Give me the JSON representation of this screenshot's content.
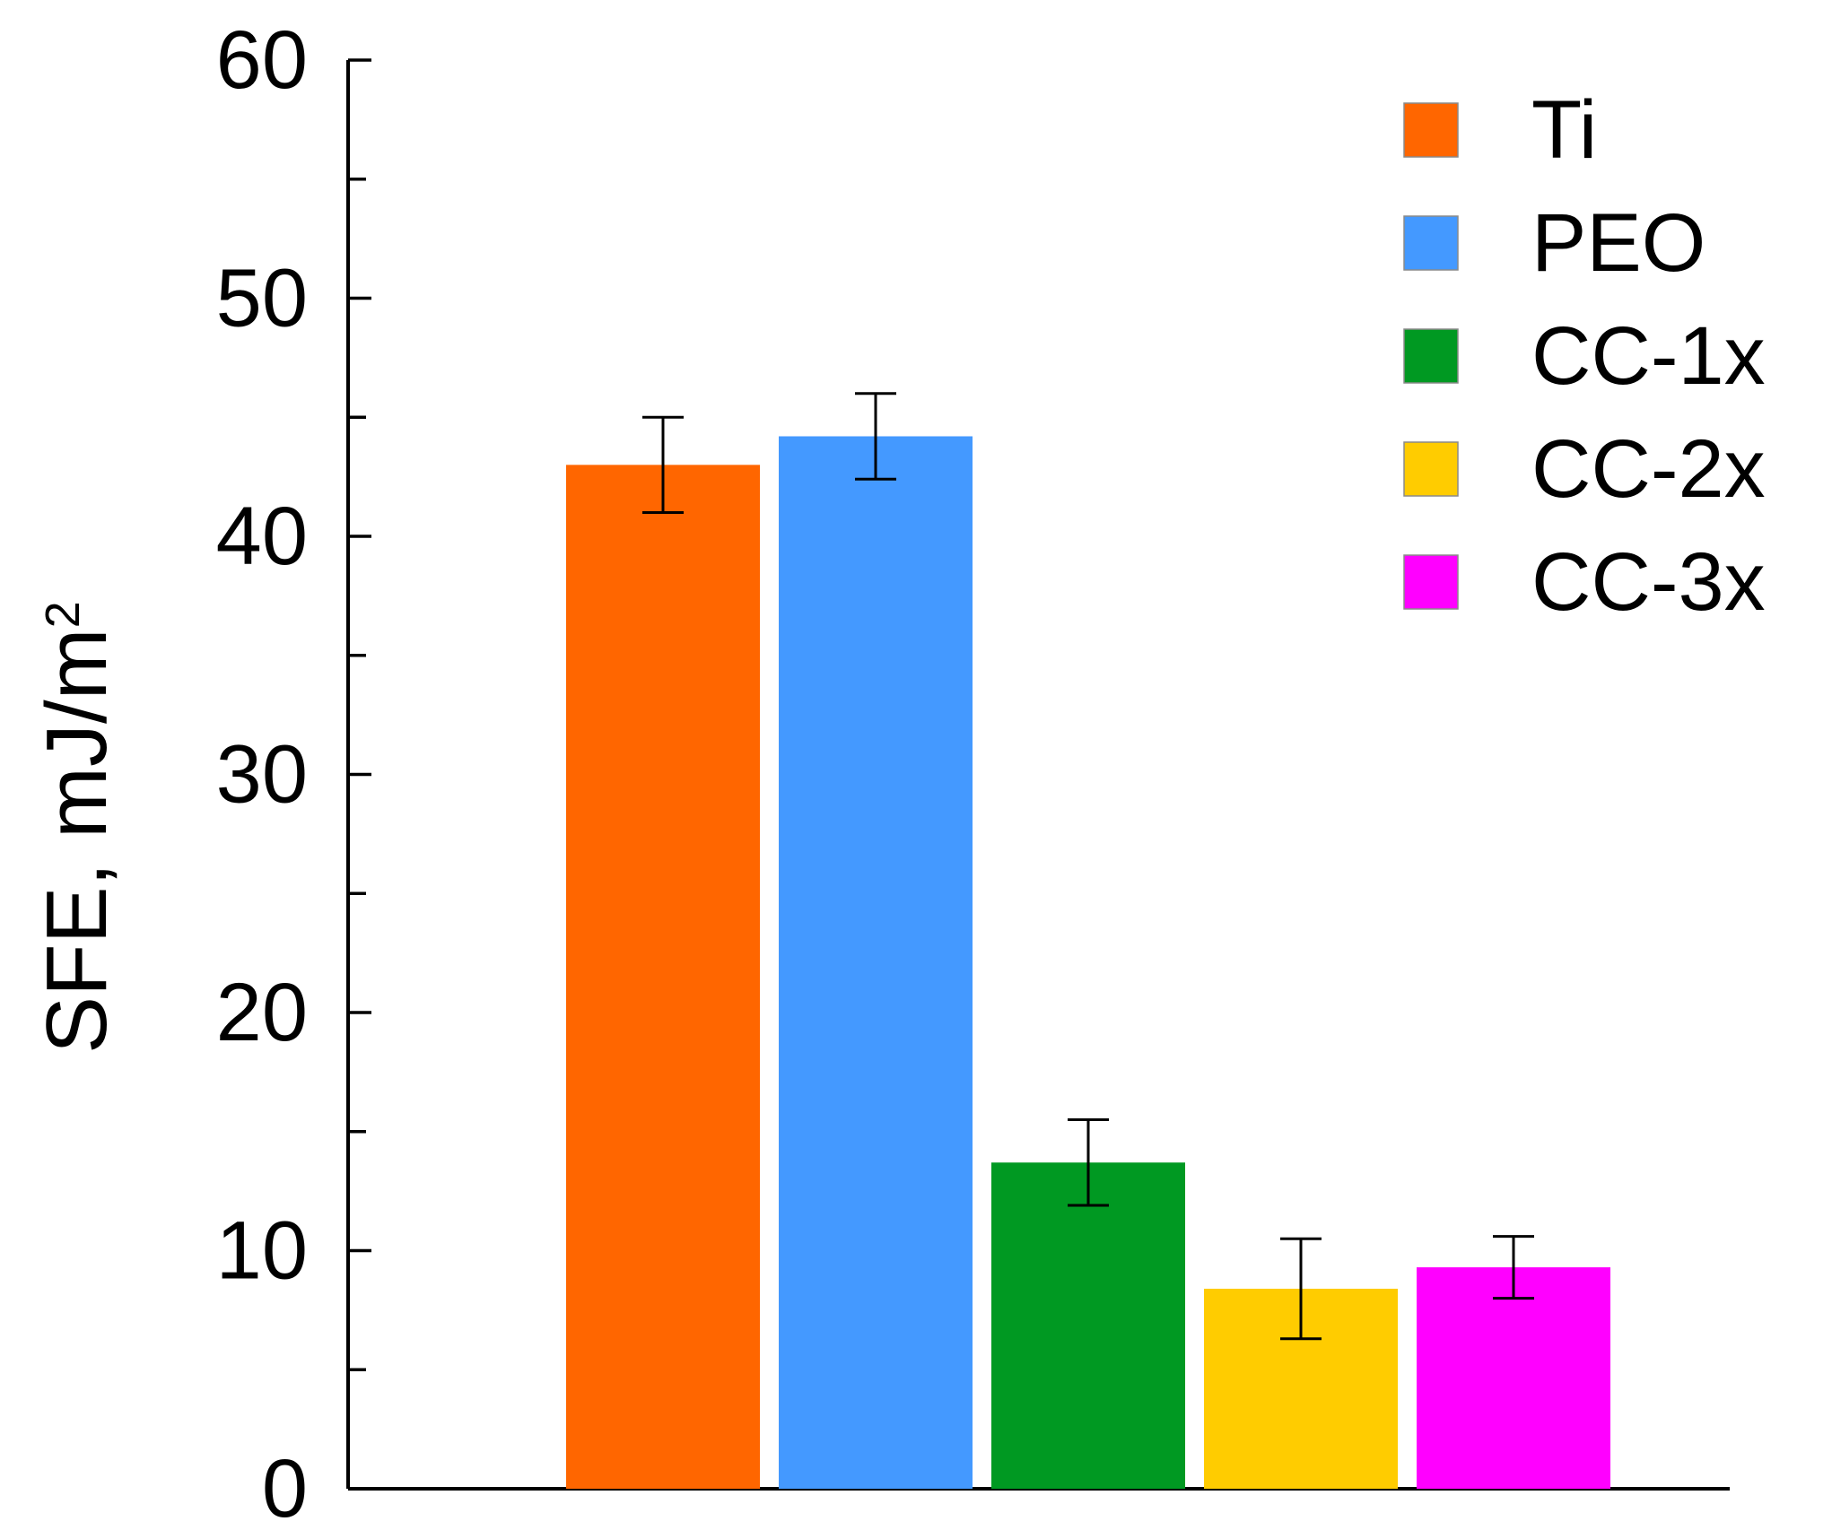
{
  "chart_data": {
    "type": "bar",
    "title": "",
    "xlabel": "",
    "ylabel": "SFE, mJ/m",
    "ylabel_superscript": "2",
    "ylim": [
      0,
      60
    ],
    "yticks": [
      0,
      10,
      20,
      30,
      40,
      50,
      60
    ],
    "minor_ticks": [
      5,
      15,
      25,
      35,
      45,
      55
    ],
    "grid": false,
    "legend_position": "top-right",
    "series": [
      {
        "name": "Ti",
        "value": 43.0,
        "error": 2.0,
        "color": "#ff6600"
      },
      {
        "name": "PEO",
        "value": 44.2,
        "error": 1.8,
        "color": "#4499ff"
      },
      {
        "name": "CC-1x",
        "value": 13.7,
        "error": 1.8,
        "color": "#009922"
      },
      {
        "name": "CC-2x",
        "value": 8.4,
        "error": 2.1,
        "color": "#ffcc00"
      },
      {
        "name": "CC-3x",
        "value": 9.3,
        "error": 1.3,
        "color": "#ff00ff"
      }
    ]
  }
}
